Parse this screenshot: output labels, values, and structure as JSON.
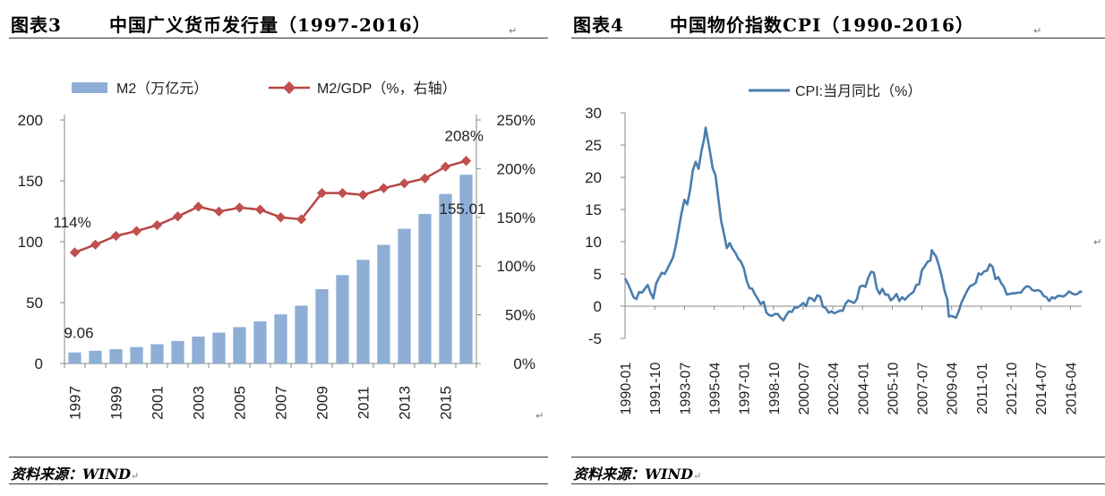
{
  "left_panel": {
    "label": "图表3",
    "title": "中国广义货币发行量（1997-2016）",
    "source": "资料来源：WIND"
  },
  "right_panel": {
    "label": "图表4",
    "title": "中国物价指数CPI（1990-2016）",
    "source": "资料来源：WIND"
  },
  "paragraph_mark": "↵",
  "chart_data": [
    {
      "type": "bar",
      "x": [
        1997,
        1998,
        1999,
        2000,
        2001,
        2002,
        2003,
        2004,
        2005,
        2006,
        2007,
        2008,
        2009,
        2010,
        2011,
        2012,
        2013,
        2014,
        2015,
        2016
      ],
      "x_tick_labels": [
        "1997",
        "1999",
        "2001",
        "2003",
        "2005",
        "2007",
        "2009",
        "2011",
        "2013",
        "2015"
      ],
      "series": [
        {
          "name": "M2（万亿元）",
          "type": "bar",
          "axis": "left",
          "color": "#8eaed6",
          "values": [
            9.06,
            10.45,
            11.76,
            13.46,
            15.83,
            18.5,
            22.12,
            25.32,
            29.88,
            34.56,
            40.34,
            47.52,
            61.02,
            72.59,
            85.16,
            97.42,
            110.65,
            122.84,
            139.23,
            155.01
          ]
        },
        {
          "name": "M2/GDP（%，右轴）",
          "type": "line",
          "axis": "right",
          "color": "#b84444",
          "marker_color": "#c0504d",
          "values": [
            114,
            122,
            131,
            136,
            142,
            151,
            161,
            156,
            160,
            158,
            150,
            148,
            175,
            175,
            173,
            180,
            185,
            190,
            202,
            208
          ]
        }
      ],
      "annotations": [
        {
          "text": "9.06",
          "series": 0,
          "index": 0
        },
        {
          "text": "155.01",
          "series": 0,
          "index": 19
        },
        {
          "text": "114%",
          "series": 1,
          "index": 0
        },
        {
          "text": "208%",
          "series": 1,
          "index": 19
        }
      ],
      "y_left": {
        "min": 0,
        "max": 200,
        "ticks": [
          0,
          50,
          100,
          150,
          200
        ],
        "tick_labels": [
          "0",
          "50",
          "100",
          "150",
          "200"
        ]
      },
      "y_right": {
        "min": 0,
        "max": 250,
        "ticks": [
          0,
          50,
          100,
          150,
          200,
          250
        ],
        "tick_labels": [
          "0%",
          "50%",
          "100%",
          "150%",
          "200%",
          "250%"
        ]
      },
      "legend_position": "top",
      "grid": false
    },
    {
      "type": "line",
      "x_tick_labels": [
        "1990-01",
        "1991-10",
        "1993-07",
        "1995-04",
        "1997-01",
        "1998-10",
        "2000-07",
        "2002-04",
        "2004-01",
        "2005-10",
        "2007-07",
        "2009-04",
        "2011-01",
        "2012-10",
        "2014-07",
        "2016-04"
      ],
      "x_range": [
        "1990-01",
        "2016-12"
      ],
      "series": [
        {
          "name": "CPI:当月同比（%）",
          "color": "#4a7dad",
          "points": [
            [
              "1990-01",
              4.3
            ],
            [
              "1990-03",
              3.5
            ],
            [
              "1990-05",
              2.5
            ],
            [
              "1990-07",
              1.4
            ],
            [
              "1990-09",
              1.1
            ],
            [
              "1990-11",
              2.2
            ],
            [
              "1991-01",
              2.1
            ],
            [
              "1991-03",
              2.7
            ],
            [
              "1991-05",
              3.3
            ],
            [
              "1991-07",
              2.1
            ],
            [
              "1991-09",
              1.2
            ],
            [
              "1991-11",
              3.5
            ],
            [
              "1992-01",
              4.4
            ],
            [
              "1992-03",
              5.2
            ],
            [
              "1992-05",
              5.0
            ],
            [
              "1992-07",
              5.8
            ],
            [
              "1992-09",
              6.7
            ],
            [
              "1992-11",
              7.6
            ],
            [
              "1993-01",
              9.5
            ],
            [
              "1993-03",
              12.0
            ],
            [
              "1993-05",
              14.5
            ],
            [
              "1993-07",
              16.5
            ],
            [
              "1993-09",
              15.8
            ],
            [
              "1993-11",
              18.0
            ],
            [
              "1994-01",
              21.1
            ],
            [
              "1994-03",
              22.4
            ],
            [
              "1994-05",
              21.3
            ],
            [
              "1994-07",
              24.0
            ],
            [
              "1994-09",
              26.0
            ],
            [
              "1994-10",
              27.7
            ],
            [
              "1994-11",
              26.5
            ],
            [
              "1995-01",
              24.1
            ],
            [
              "1995-03",
              21.4
            ],
            [
              "1995-05",
              20.3
            ],
            [
              "1995-07",
              16.7
            ],
            [
              "1995-09",
              13.2
            ],
            [
              "1995-11",
              11.2
            ],
            [
              "1996-01",
              9.0
            ],
            [
              "1996-03",
              9.8
            ],
            [
              "1996-05",
              8.9
            ],
            [
              "1996-07",
              8.3
            ],
            [
              "1996-09",
              7.4
            ],
            [
              "1996-11",
              6.9
            ],
            [
              "1997-01",
              5.9
            ],
            [
              "1997-03",
              4.0
            ],
            [
              "1997-05",
              2.8
            ],
            [
              "1997-07",
              2.7
            ],
            [
              "1997-09",
              1.8
            ],
            [
              "1997-11",
              1.1
            ],
            [
              "1998-01",
              0.3
            ],
            [
              "1998-03",
              0.7
            ],
            [
              "1998-05",
              -1.0
            ],
            [
              "1998-07",
              -1.4
            ],
            [
              "1998-09",
              -1.5
            ],
            [
              "1998-11",
              -1.2
            ],
            [
              "1999-01",
              -1.2
            ],
            [
              "1999-03",
              -1.8
            ],
            [
              "1999-05",
              -2.2
            ],
            [
              "1999-07",
              -1.4
            ],
            [
              "1999-09",
              -0.8
            ],
            [
              "1999-11",
              -0.9
            ],
            [
              "2000-01",
              -0.2
            ],
            [
              "2000-03",
              -0.2
            ],
            [
              "2000-05",
              0.1
            ],
            [
              "2000-07",
              0.5
            ],
            [
              "2000-09",
              0.0
            ],
            [
              "2000-11",
              1.3
            ],
            [
              "2001-01",
              1.2
            ],
            [
              "2001-03",
              0.8
            ],
            [
              "2001-05",
              1.7
            ],
            [
              "2001-07",
              1.5
            ],
            [
              "2001-09",
              -0.1
            ],
            [
              "2001-11",
              -0.3
            ],
            [
              "2002-01",
              -1.0
            ],
            [
              "2002-03",
              -0.8
            ],
            [
              "2002-05",
              -1.1
            ],
            [
              "2002-07",
              -0.9
            ],
            [
              "2002-09",
              -0.7
            ],
            [
              "2002-11",
              -0.7
            ],
            [
              "2003-01",
              0.4
            ],
            [
              "2003-03",
              0.9
            ],
            [
              "2003-05",
              0.7
            ],
            [
              "2003-07",
              0.5
            ],
            [
              "2003-09",
              1.1
            ],
            [
              "2003-11",
              3.0
            ],
            [
              "2004-01",
              3.2
            ],
            [
              "2004-03",
              3.0
            ],
            [
              "2004-05",
              4.4
            ],
            [
              "2004-07",
              5.3
            ],
            [
              "2004-08",
              5.3
            ],
            [
              "2004-09",
              5.2
            ],
            [
              "2004-11",
              2.8
            ],
            [
              "2005-01",
              1.9
            ],
            [
              "2005-03",
              2.7
            ],
            [
              "2005-05",
              1.8
            ],
            [
              "2005-07",
              1.8
            ],
            [
              "2005-09",
              0.9
            ],
            [
              "2005-11",
              1.3
            ],
            [
              "2006-01",
              1.9
            ],
            [
              "2006-03",
              0.8
            ],
            [
              "2006-05",
              1.4
            ],
            [
              "2006-07",
              1.0
            ],
            [
              "2006-09",
              1.5
            ],
            [
              "2006-11",
              1.9
            ],
            [
              "2007-01",
              2.2
            ],
            [
              "2007-03",
              3.3
            ],
            [
              "2007-05",
              3.4
            ],
            [
              "2007-07",
              5.6
            ],
            [
              "2007-09",
              6.2
            ],
            [
              "2007-11",
              6.9
            ],
            [
              "2008-01",
              7.1
            ],
            [
              "2008-02",
              8.7
            ],
            [
              "2008-03",
              8.3
            ],
            [
              "2008-05",
              7.7
            ],
            [
              "2008-07",
              6.3
            ],
            [
              "2008-09",
              4.6
            ],
            [
              "2008-11",
              2.4
            ],
            [
              "2009-01",
              1.0
            ],
            [
              "2009-02",
              -1.6
            ],
            [
              "2009-04",
              -1.5
            ],
            [
              "2009-06",
              -1.7
            ],
            [
              "2009-07",
              -1.8
            ],
            [
              "2009-09",
              -0.8
            ],
            [
              "2009-11",
              0.6
            ],
            [
              "2010-01",
              1.5
            ],
            [
              "2010-03",
              2.4
            ],
            [
              "2010-05",
              3.1
            ],
            [
              "2010-07",
              3.3
            ],
            [
              "2010-09",
              3.6
            ],
            [
              "2010-11",
              5.1
            ],
            [
              "2011-01",
              4.9
            ],
            [
              "2011-03",
              5.4
            ],
            [
              "2011-05",
              5.5
            ],
            [
              "2011-07",
              6.5
            ],
            [
              "2011-09",
              6.1
            ],
            [
              "2011-11",
              4.2
            ],
            [
              "2012-01",
              4.5
            ],
            [
              "2012-03",
              3.6
            ],
            [
              "2012-05",
              3.0
            ],
            [
              "2012-07",
              1.8
            ],
            [
              "2012-09",
              1.9
            ],
            [
              "2012-11",
              2.0
            ],
            [
              "2013-01",
              2.0
            ],
            [
              "2013-03",
              2.1
            ],
            [
              "2013-05",
              2.1
            ],
            [
              "2013-07",
              2.7
            ],
            [
              "2013-09",
              3.1
            ],
            [
              "2013-11",
              3.0
            ],
            [
              "2014-01",
              2.5
            ],
            [
              "2014-03",
              2.4
            ],
            [
              "2014-05",
              2.5
            ],
            [
              "2014-07",
              2.3
            ],
            [
              "2014-09",
              1.6
            ],
            [
              "2014-11",
              1.4
            ],
            [
              "2015-01",
              0.8
            ],
            [
              "2015-03",
              1.4
            ],
            [
              "2015-05",
              1.2
            ],
            [
              "2015-07",
              1.6
            ],
            [
              "2015-09",
              1.6
            ],
            [
              "2015-11",
              1.5
            ],
            [
              "2016-01",
              1.8
            ],
            [
              "2016-03",
              2.3
            ],
            [
              "2016-05",
              2.0
            ],
            [
              "2016-07",
              1.8
            ],
            [
              "2016-09",
              1.9
            ],
            [
              "2016-11",
              2.3
            ],
            [
              "2016-12",
              2.1
            ]
          ]
        }
      ],
      "y": {
        "min": -5,
        "max": 30,
        "ticks": [
          -5,
          0,
          5,
          10,
          15,
          20,
          25,
          30
        ],
        "tick_labels": [
          "-5",
          "0",
          "5",
          "10",
          "15",
          "20",
          "25",
          "30"
        ]
      },
      "legend_position": "top",
      "grid": false
    }
  ]
}
